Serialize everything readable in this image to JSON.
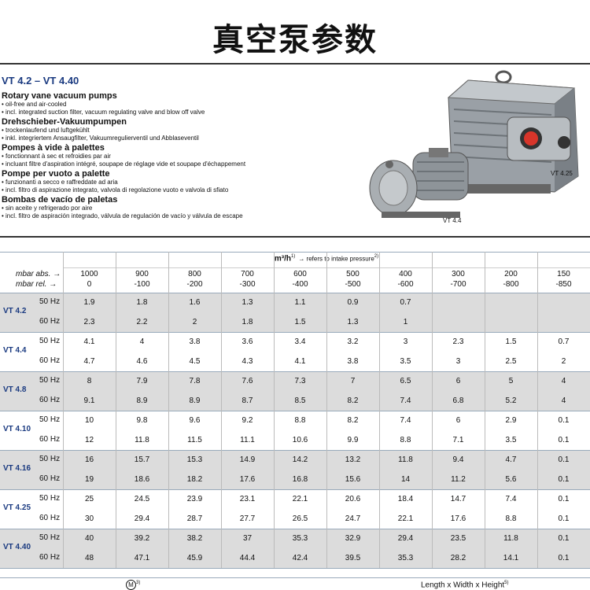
{
  "header": {
    "title": "真空泵参数"
  },
  "product": {
    "title": "VT 4.2 – VT 4.40",
    "sections": [
      {
        "heading": "Rotary vane vacuum pumps",
        "bullets": [
          "oil-free and air-cooled",
          "incl. integrated suction filter, vacuum regulating valve and blow off valve"
        ]
      },
      {
        "heading": "Drehschieber-Vakuumpumpen",
        "bullets": [
          "trockenlaufend und luftgekühlt",
          "inkl. integriertem Ansaugfilter, Vakuumregulierventil und Abblaseventil"
        ]
      },
      {
        "heading": "Pompes à vide à palettes",
        "bullets": [
          "fonctionnant à sec et refroidies par air",
          "incluant filtre d'aspiration intégré, soupape de réglage vide et soupape d'échappement"
        ]
      },
      {
        "heading": "Pompe per vuoto a palette",
        "bullets": [
          "funzionanti a secco e raffreddate ad aria",
          "incl. filtro di aspirazione integrato, valvola di regolazione vuoto e valvola di sfiato"
        ]
      },
      {
        "heading": "Bombas de vacío de paletas",
        "bullets": [
          "sin aceite y refrigerado por aire",
          "incl. filtro de aspiración integrado, válvula de regulación de vacío y válvula de escape"
        ]
      }
    ],
    "image_labels": [
      "VT 4.25",
      "VT 4.4"
    ]
  },
  "table": {
    "unit": "m³/h",
    "unit_note": "1)",
    "unit_caption": "→ refers to intake pressure",
    "unit_caption_note": "2)",
    "abs_label": "mbar abs. →",
    "rel_label": "mbar rel. →",
    "abs": [
      1000,
      900,
      800,
      700,
      600,
      500,
      400,
      300,
      200,
      150
    ],
    "rel": [
      0,
      -100,
      -200,
      -300,
      -400,
      -500,
      -600,
      -700,
      -800,
      -850
    ],
    "models": [
      {
        "name": "VT 4.2",
        "rows": [
          {
            "freq": "50 Hz",
            "values": [
              1.9,
              1.8,
              1.6,
              1.3,
              1.1,
              0.9,
              0.7
            ]
          },
          {
            "freq": "60 Hz",
            "values": [
              2.3,
              2.2,
              2,
              1.8,
              1.5,
              1.3,
              1
            ]
          }
        ]
      },
      {
        "name": "VT 4.4",
        "rows": [
          {
            "freq": "50 Hz",
            "values": [
              4.1,
              4,
              3.8,
              3.6,
              3.4,
              3.2,
              3,
              2.3,
              1.5,
              0.7
            ]
          },
          {
            "freq": "60 Hz",
            "values": [
              4.7,
              4.6,
              4.5,
              4.3,
              4.1,
              3.8,
              3.5,
              3,
              2.5,
              2
            ]
          }
        ]
      },
      {
        "name": "VT 4.8",
        "rows": [
          {
            "freq": "50 Hz",
            "values": [
              8,
              7.9,
              7.8,
              7.6,
              7.3,
              7,
              6.5,
              6,
              5,
              4
            ]
          },
          {
            "freq": "60 Hz",
            "values": [
              9.1,
              8.9,
              8.9,
              8.7,
              8.5,
              8.2,
              7.4,
              6.8,
              5.2,
              4
            ]
          }
        ]
      },
      {
        "name": "VT 4.10",
        "rows": [
          {
            "freq": "50 Hz",
            "values": [
              10,
              9.8,
              9.6,
              9.2,
              8.8,
              8.2,
              7.4,
              6,
              2.9,
              0.1
            ]
          },
          {
            "freq": "60 Hz",
            "values": [
              12,
              11.8,
              11.5,
              11.1,
              10.6,
              9.9,
              8.8,
              7.1,
              3.5,
              0.1
            ]
          }
        ]
      },
      {
        "name": "VT 4.16",
        "rows": [
          {
            "freq": "50 Hz",
            "values": [
              16,
              15.7,
              15.3,
              14.9,
              14.2,
              13.2,
              11.8,
              9.4,
              4.7,
              0.1
            ]
          },
          {
            "freq": "60 Hz",
            "values": [
              19,
              18.6,
              18.2,
              17.6,
              16.8,
              15.6,
              14,
              11.2,
              5.6,
              0.1
            ]
          }
        ]
      },
      {
        "name": "VT 4.25",
        "rows": [
          {
            "freq": "50 Hz",
            "values": [
              25,
              24.5,
              23.9,
              23.1,
              22.1,
              20.6,
              18.4,
              14.7,
              7.4,
              0.1
            ]
          },
          {
            "freq": "60 Hz",
            "values": [
              30,
              29.4,
              28.7,
              27.7,
              26.5,
              24.7,
              22.1,
              17.6,
              8.8,
              0.1
            ]
          }
        ]
      },
      {
        "name": "VT 4.40",
        "rows": [
          {
            "freq": "50 Hz",
            "values": [
              40,
              39.2,
              38.2,
              37,
              35.3,
              32.9,
              29.4,
              23.5,
              11.8,
              0.1
            ]
          },
          {
            "freq": "60 Hz",
            "values": [
              48,
              47.1,
              45.9,
              44.4,
              42.4,
              39.5,
              35.3,
              28.2,
              14.1,
              0.1
            ]
          }
        ]
      }
    ]
  },
  "footer_row": {
    "motor_symbol": "M",
    "motor_note": "3)",
    "dimensions": "Length x Width x Height",
    "dimensions_note": "5)"
  }
}
